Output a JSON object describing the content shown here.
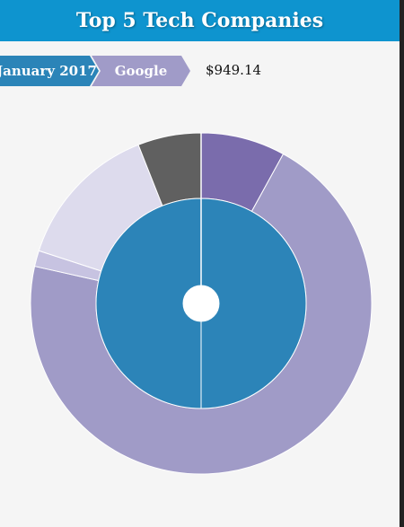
{
  "header": {
    "title": "Top 5 Tech Companies"
  },
  "breadcrumb": {
    "items": [
      {
        "label": "January 2017",
        "color": "#2b84b8"
      },
      {
        "label": "Google",
        "color": "#a09bc8"
      }
    ],
    "value": "$949.14"
  },
  "chart_data": {
    "type": "sunburst",
    "title": "",
    "colors": {
      "inner": "#2c84b8",
      "outer_big": "#a09bc7",
      "outer_small": "#c7c3e1",
      "outer_light": "#dddbed",
      "outer_dark": "#606060",
      "outer_purple": "#7a6cac"
    },
    "inner": [
      {
        "name": "January 2017",
        "value": 100
      }
    ],
    "outer": [
      {
        "value": 8.0,
        "color": "#7a6cac"
      },
      {
        "value": 70.5,
        "color": "#a09bc7"
      },
      {
        "value": 1.5,
        "color": "#c7c3e1"
      },
      {
        "value": 14.0,
        "color": "#dddbed"
      },
      {
        "value": 6.0,
        "color": "#606060"
      }
    ]
  }
}
